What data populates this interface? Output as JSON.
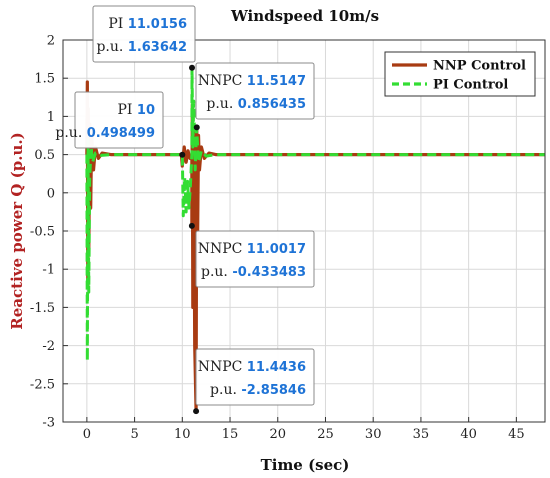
{
  "chart_data": {
    "type": "line",
    "title": "Windspeed 10m/s",
    "xlabel": "Time (sec)",
    "ylabel": "Reactive power Q (p.u.)",
    "xlim": [
      -2.5,
      48
    ],
    "ylim": [
      -3,
      2
    ],
    "xticks": [
      "0",
      "5",
      "10",
      "15",
      "20",
      "25",
      "30",
      "35",
      "40",
      "45"
    ],
    "yticks": [
      "-3",
      "-2.5",
      "-2",
      "-1.5",
      "-1",
      "-0.5",
      "0",
      "0.5",
      "1",
      "1.5",
      "2"
    ],
    "grid": true,
    "legend_position": "top-right",
    "series": [
      {
        "name": "NNP Control",
        "color": "#a83b12",
        "style": "solid",
        "points": [
          [
            0.0,
            0.5
          ],
          [
            0.05,
            1.45
          ],
          [
            0.1,
            -1.2
          ],
          [
            0.15,
            1.1
          ],
          [
            0.2,
            -0.8
          ],
          [
            0.3,
            0.9
          ],
          [
            0.4,
            -0.2
          ],
          [
            0.5,
            0.75
          ],
          [
            0.7,
            0.3
          ],
          [
            0.9,
            0.6
          ],
          [
            1.2,
            0.45
          ],
          [
            1.6,
            0.52
          ],
          [
            2.5,
            0.5
          ],
          [
            9.9,
            0.5
          ],
          [
            10.0,
            0.35
          ],
          [
            10.2,
            0.6
          ],
          [
            10.4,
            0.4
          ],
          [
            10.6,
            0.55
          ],
          [
            10.8,
            0.45
          ],
          [
            11.0,
            0.5
          ],
          [
            11.0017,
            -0.433483
          ],
          [
            11.05,
            1.15
          ],
          [
            11.1,
            -1.5
          ],
          [
            11.2,
            0.9
          ],
          [
            11.3,
            -2.0
          ],
          [
            11.4436,
            -2.85846
          ],
          [
            11.5147,
            0.856435
          ],
          [
            11.6,
            -0.6
          ],
          [
            11.7,
            0.75
          ],
          [
            11.8,
            0.3
          ],
          [
            12.0,
            0.6
          ],
          [
            12.3,
            0.45
          ],
          [
            12.8,
            0.52
          ],
          [
            13.5,
            0.5
          ],
          [
            48.0,
            0.5
          ]
        ]
      },
      {
        "name": "PI Control",
        "color": "#33dd33",
        "style": "dashed",
        "points": [
          [
            0.0,
            0.5
          ],
          [
            0.05,
            -2.2
          ],
          [
            0.12,
            0.7
          ],
          [
            0.2,
            -1.3
          ],
          [
            0.3,
            0.2
          ],
          [
            0.45,
            0.6
          ],
          [
            0.6,
            0.4
          ],
          [
            0.9,
            0.52
          ],
          [
            1.5,
            0.49
          ],
          [
            2.5,
            0.5
          ],
          [
            9.9,
            0.5
          ],
          [
            10.0,
            0.498499
          ],
          [
            10.1,
            -0.3
          ],
          [
            10.25,
            0.2
          ],
          [
            10.4,
            -0.25
          ],
          [
            10.55,
            0.15
          ],
          [
            10.7,
            -0.2
          ],
          [
            10.85,
            0.1
          ],
          [
            11.0,
            0.5
          ],
          [
            11.0156,
            1.63642
          ],
          [
            11.1,
            0.6
          ],
          [
            11.2,
            1.2
          ],
          [
            11.35,
            0.3
          ],
          [
            11.5,
            0.85
          ],
          [
            11.7,
            0.4
          ],
          [
            12.0,
            0.55
          ],
          [
            12.5,
            0.48
          ],
          [
            13.5,
            0.5
          ],
          [
            48.0,
            0.5
          ]
        ]
      }
    ],
    "annotations": [
      {
        "name": "PI",
        "x_text": "11.0156",
        "y_text": "1.63642",
        "x": 11.0156,
        "y": 1.63642
      },
      {
        "name": "PI",
        "x_text": "10",
        "y_text": "0.498499",
        "x": 10,
        "y": 0.498499
      },
      {
        "name": "NNPC",
        "x_text": "11.5147",
        "y_text": "0.856435",
        "x": 11.5147,
        "y": 0.856435
      },
      {
        "name": "NNPC",
        "x_text": "11.0017",
        "y_text": "-0.433483",
        "x": 11.0017,
        "y": -0.433483
      },
      {
        "name": "NNPC",
        "x_text": "11.4436",
        "y_text": "-2.85846",
        "x": 11.4436,
        "y": -2.85846
      }
    ],
    "annotation_y_prefix": "p.u."
  }
}
